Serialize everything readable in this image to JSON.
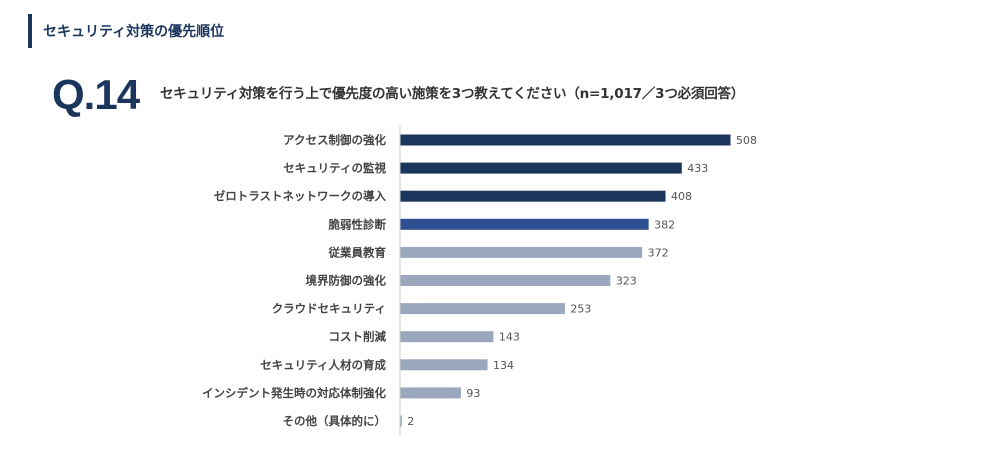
{
  "section": {
    "title": "セキュリティ対策の優先順位"
  },
  "question": {
    "number": "Q.14",
    "text": "セキュリティ対策を行う上で優先度の高い施策を3つ教えてください（n=1,017／3つ必須回答）"
  },
  "colors": {
    "accent": "#1b365d",
    "highlight": "#2f4f93",
    "muted": "#9aa7bd",
    "axis": "#cccccc"
  },
  "chart_data": {
    "type": "bar",
    "orientation": "horizontal",
    "categories": [
      "アクセス制御の強化",
      "セキュリティの監視",
      "ゼロトラストネットワークの導入",
      "脆弱性診断",
      "従業員教育",
      "境界防御の強化",
      "クラウドセキュリティ",
      "コスト削減",
      "セキュリティ人材の育成",
      "インシデント発生時の対応体制強化",
      "その他（具体的に）"
    ],
    "values": [
      508,
      433,
      408,
      382,
      372,
      323,
      253,
      143,
      134,
      93,
      2
    ],
    "bar_colors": [
      "#1b365d",
      "#1b365d",
      "#1b365d",
      "#2f4f93",
      "#9aa7bd",
      "#9aa7bd",
      "#9aa7bd",
      "#9aa7bd",
      "#9aa7bd",
      "#9aa7bd",
      "#9aa7bd"
    ],
    "data_labels": true,
    "grid": false,
    "legend": "none",
    "xlim": [
      0,
      508
    ]
  }
}
